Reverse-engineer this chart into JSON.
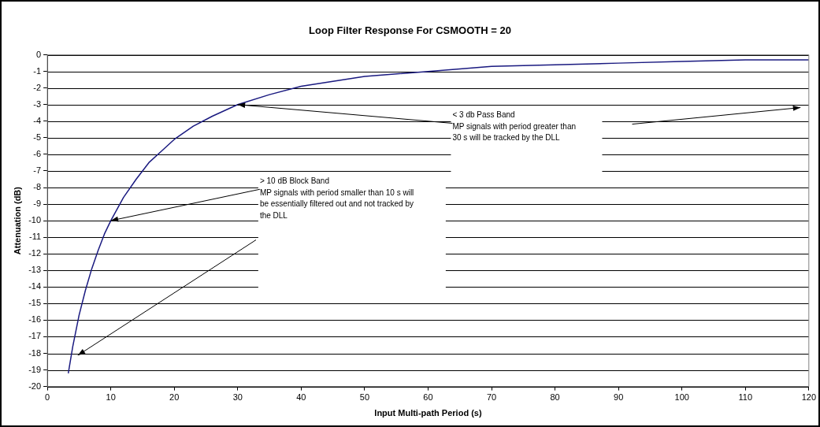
{
  "chart_data": {
    "type": "line",
    "title": "Loop Filter Response For CSMOOTH = 20",
    "xlabel": "Input Multi-path Period (s)",
    "ylabel": "Attenuation (dB)",
    "x": [
      3.3,
      4,
      5,
      6,
      7,
      8,
      9,
      10,
      12,
      14,
      16,
      18,
      20,
      23,
      26,
      30,
      35,
      40,
      45,
      50,
      60,
      70,
      80,
      90,
      100,
      110,
      120
    ],
    "series": [
      {
        "color": "#1a1a80",
        "values": [
          -19.2,
          -17.6,
          -15.7,
          -14.2,
          -12.9,
          -11.8,
          -10.8,
          -10.0,
          -8.6,
          -7.5,
          -6.5,
          -5.8,
          -5.1,
          -4.3,
          -3.7,
          -3.0,
          -2.4,
          -1.9,
          -1.6,
          -1.3,
          -1.0,
          -0.7,
          -0.6,
          -0.5,
          -0.4,
          -0.3,
          -0.3
        ]
      }
    ],
    "xlim": [
      0,
      120
    ],
    "xticks": [
      0,
      10,
      20,
      30,
      40,
      50,
      60,
      70,
      80,
      90,
      100,
      110,
      120
    ],
    "ylim": [
      -20,
      0
    ],
    "yticks": [
      -20,
      -19,
      -18,
      -17,
      -16,
      -15,
      -14,
      -13,
      -12,
      -11,
      -10,
      -9,
      -8,
      -7,
      -6,
      -5,
      -4,
      -3,
      -2,
      -1,
      0
    ],
    "grid": "y",
    "legend": false,
    "marker": "none",
    "line_style": "solid",
    "annotations": [
      {
        "text": "< 3 db Pass Band\nMP signals with period greater than\n30 s will be tracked by the DLL",
        "x": 30,
        "y": -3
      },
      {
        "text": "> 10 dB Block Band\nMP signals with period smaller than 10 s will\nbe essentially filtered out and not tracked by\nthe DLL",
        "x": 10,
        "y": -10
      }
    ]
  }
}
